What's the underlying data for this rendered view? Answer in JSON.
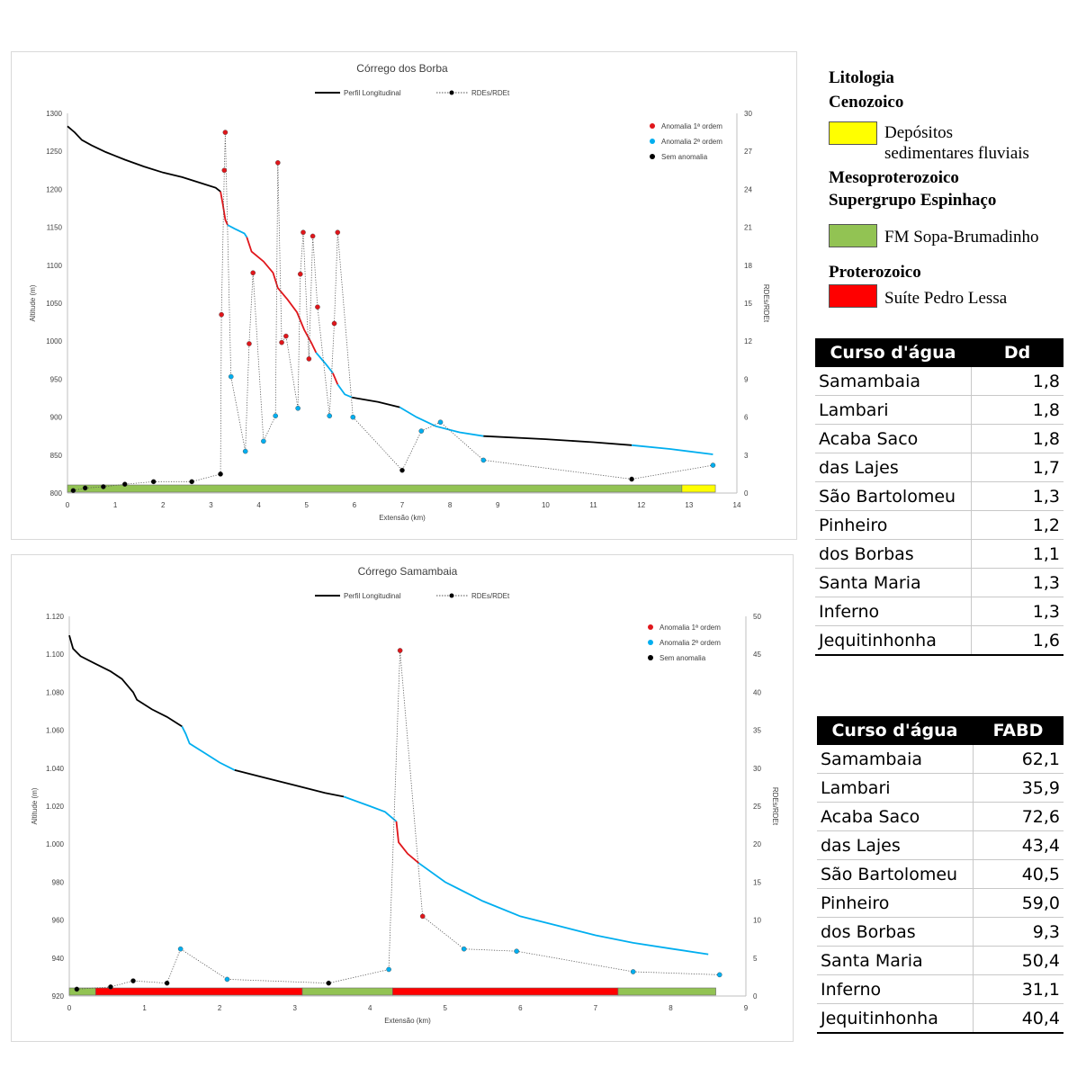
{
  "chart_data": [
    {
      "type": "line",
      "title": "Córrego dos Borba",
      "xlabel": "Extensão (km)",
      "ylabel": "Altitude (m)",
      "y2label": "RDEs/RDEt",
      "xlim": [
        0,
        14
      ],
      "ylim": [
        800,
        1300
      ],
      "y2lim": [
        0,
        30
      ],
      "xticks": [
        "0",
        "1",
        "2",
        "3",
        "4",
        "5",
        "6",
        "7",
        "8",
        "9",
        "10",
        "11",
        "12",
        "13",
        "14"
      ],
      "yticks": [
        "800",
        "850",
        "900",
        "950",
        "1000",
        "1050",
        "1100",
        "1150",
        "1200",
        "1250",
        "1300"
      ],
      "y2ticks": [
        "0",
        "3",
        "6",
        "9",
        "12",
        "15",
        "18",
        "21",
        "24",
        "27",
        "30"
      ],
      "legend_top": [
        "Perfil Longitudinal",
        "RDEs/RDEt"
      ],
      "legend_points": [
        "Anomalia 1ª ordem",
        "Anomalia 2ª ordem",
        "Sem anomalia"
      ],
      "profile_color_black": "#000000",
      "profile_color_red": "#e0161b",
      "profile_color_blue": "#00aeef",
      "profile_segments": [
        {
          "color": "#000000",
          "points": [
            [
              0,
              1283
            ],
            [
              0.15,
              1275
            ],
            [
              0.3,
              1265
            ],
            [
              0.5,
              1258
            ],
            [
              0.8,
              1249
            ],
            [
              1.2,
              1239
            ],
            [
              1.6,
              1230
            ],
            [
              2.0,
              1222
            ],
            [
              2.4,
              1216
            ],
            [
              2.8,
              1208
            ],
            [
              3.1,
              1202
            ],
            [
              3.2,
              1197
            ]
          ]
        },
        {
          "color": "#e0161b",
          "points": [
            [
              3.2,
              1197
            ],
            [
              3.25,
              1180
            ],
            [
              3.3,
              1160
            ],
            [
              3.35,
              1153
            ]
          ]
        },
        {
          "color": "#00aeef",
          "points": [
            [
              3.35,
              1153
            ],
            [
              3.5,
              1148
            ],
            [
              3.7,
              1142
            ],
            [
              3.75,
              1137
            ]
          ]
        },
        {
          "color": "#e0161b",
          "points": [
            [
              3.75,
              1137
            ],
            [
              3.85,
              1118
            ],
            [
              4.1,
              1105
            ],
            [
              4.3,
              1090
            ],
            [
              4.4,
              1070
            ],
            [
              4.6,
              1055
            ],
            [
              4.8,
              1038
            ],
            [
              4.95,
              1015
            ],
            [
              5.1,
              998
            ],
            [
              5.2,
              985
            ]
          ]
        },
        {
          "color": "#00aeef",
          "points": [
            [
              5.2,
              985
            ],
            [
              5.4,
              970
            ],
            [
              5.55,
              958
            ]
          ]
        },
        {
          "color": "#e0161b",
          "points": [
            [
              5.55,
              958
            ],
            [
              5.65,
              943
            ]
          ]
        },
        {
          "color": "#00aeef",
          "points": [
            [
              5.65,
              943
            ],
            [
              5.8,
              930
            ],
            [
              5.95,
              926
            ]
          ]
        },
        {
          "color": "#000000",
          "points": [
            [
              5.95,
              926
            ],
            [
              6.5,
              920
            ],
            [
              6.95,
              913
            ]
          ]
        },
        {
          "color": "#00aeef",
          "points": [
            [
              6.95,
              913
            ],
            [
              7.3,
              900
            ],
            [
              7.7,
              888
            ],
            [
              8.2,
              880
            ],
            [
              8.7,
              875
            ]
          ]
        },
        {
          "color": "#000000",
          "points": [
            [
              8.7,
              875
            ],
            [
              10,
              871
            ],
            [
              11,
              867
            ],
            [
              11.8,
              863
            ]
          ]
        },
        {
          "color": "#00aeef",
          "points": [
            [
              11.8,
              863
            ],
            [
              12.6,
              858
            ],
            [
              13.5,
              851
            ]
          ]
        }
      ],
      "rde_points": [
        {
          "x": 0.12,
          "y": 0.2,
          "class": "Sem anomalia"
        },
        {
          "x": 0.37,
          "y": 0.4,
          "class": "Sem anomalia"
        },
        {
          "x": 0.75,
          "y": 0.5,
          "class": "Sem anomalia"
        },
        {
          "x": 1.2,
          "y": 0.7,
          "class": "Sem anomalia"
        },
        {
          "x": 1.8,
          "y": 0.9,
          "class": "Sem anomalia"
        },
        {
          "x": 2.6,
          "y": 0.9,
          "class": "Sem anomalia"
        },
        {
          "x": 3.2,
          "y": 1.5,
          "class": "Sem anomalia"
        },
        {
          "x": 3.22,
          "y": 14.1,
          "class": "Anomalia 1ª ordem"
        },
        {
          "x": 3.28,
          "y": 25.5,
          "class": "Anomalia 1ª ordem"
        },
        {
          "x": 3.3,
          "y": 28.5,
          "class": "Anomalia 1ª ordem"
        },
        {
          "x": 3.42,
          "y": 9.2,
          "class": "Anomalia 2ª ordem"
        },
        {
          "x": 3.72,
          "y": 3.3,
          "class": "Anomalia 2ª ordem"
        },
        {
          "x": 3.8,
          "y": 11.8,
          "class": "Anomalia 1ª ordem"
        },
        {
          "x": 3.88,
          "y": 17.4,
          "class": "Anomalia 1ª ordem"
        },
        {
          "x": 4.1,
          "y": 4.1,
          "class": "Anomalia 2ª ordem"
        },
        {
          "x": 4.35,
          "y": 6.1,
          "class": "Anomalia 2ª ordem"
        },
        {
          "x": 4.4,
          "y": 26.1,
          "class": "Anomalia 1ª ordem"
        },
        {
          "x": 4.48,
          "y": 11.9,
          "class": "Anomalia 1ª ordem"
        },
        {
          "x": 4.57,
          "y": 12.4,
          "class": "Anomalia 1ª ordem"
        },
        {
          "x": 4.82,
          "y": 6.7,
          "class": "Anomalia 2ª ordem"
        },
        {
          "x": 4.87,
          "y": 17.3,
          "class": "Anomalia 1ª ordem"
        },
        {
          "x": 4.93,
          "y": 20.6,
          "class": "Anomalia 1ª ordem"
        },
        {
          "x": 5.05,
          "y": 10.6,
          "class": "Anomalia 1ª ordem"
        },
        {
          "x": 5.13,
          "y": 20.3,
          "class": "Anomalia 1ª ordem"
        },
        {
          "x": 5.23,
          "y": 14.7,
          "class": "Anomalia 1ª ordem"
        },
        {
          "x": 5.48,
          "y": 6.1,
          "class": "Anomalia 2ª ordem"
        },
        {
          "x": 5.58,
          "y": 13.4,
          "class": "Anomalia 1ª ordem"
        },
        {
          "x": 5.65,
          "y": 20.6,
          "class": "Anomalia 1ª ordem"
        },
        {
          "x": 5.97,
          "y": 6.0,
          "class": "Anomalia 2ª ordem"
        },
        {
          "x": 7.0,
          "y": 1.8,
          "class": "Sem anomalia"
        },
        {
          "x": 7.4,
          "y": 4.9,
          "class": "Anomalia 2ª ordem"
        },
        {
          "x": 7.8,
          "y": 5.6,
          "class": "Anomalia 2ª ordem"
        },
        {
          "x": 8.7,
          "y": 2.6,
          "class": "Anomalia 2ª ordem"
        },
        {
          "x": 11.8,
          "y": 1.1,
          "class": "Sem anomalia"
        },
        {
          "x": 13.5,
          "y": 2.2,
          "class": "Anomalia 2ª ordem"
        }
      ],
      "lithology_bar": [
        {
          "from": 0,
          "to": 12.85,
          "color": "#92c353"
        },
        {
          "from": 12.85,
          "to": 13.55,
          "color": "#ffff00"
        }
      ]
    },
    {
      "type": "line",
      "title": "Córrego Samambaia",
      "xlabel": "Extensão (km)",
      "ylabel": "Altitude (m)",
      "y2label": "RDEs/RDEt",
      "xlim": [
        0,
        9
      ],
      "ylim": [
        920,
        1120
      ],
      "y2lim": [
        0,
        50
      ],
      "xticks": [
        "0",
        "1",
        "2",
        "3",
        "4",
        "5",
        "6",
        "7",
        "8",
        "9"
      ],
      "yticks": [
        "920",
        "940",
        "960",
        "980",
        "1.000",
        "1.020",
        "1.040",
        "1.060",
        "1.080",
        "1.100",
        "1.120"
      ],
      "y2ticks": [
        "0",
        "5",
        "10",
        "15",
        "20",
        "25",
        "30",
        "35",
        "40",
        "45",
        "50"
      ],
      "legend_top": [
        "Perfil Longitudinal",
        "RDEs/RDEt"
      ],
      "legend_points": [
        "Anomalia 1ª ordem",
        "Anomalia 2ª ordem",
        "Sem anomalia"
      ],
      "profile_segments": [
        {
          "color": "#000000",
          "points": [
            [
              0,
              1110
            ],
            [
              0.05,
              1103
            ],
            [
              0.15,
              1099
            ],
            [
              0.35,
              1095
            ],
            [
              0.55,
              1091
            ],
            [
              0.7,
              1087
            ],
            [
              0.85,
              1080
            ],
            [
              0.9,
              1076
            ],
            [
              1.1,
              1071
            ],
            [
              1.3,
              1067
            ],
            [
              1.5,
              1062
            ]
          ]
        },
        {
          "color": "#00aeef",
          "points": [
            [
              1.5,
              1062
            ],
            [
              1.55,
              1058
            ],
            [
              1.6,
              1053
            ],
            [
              1.8,
              1048
            ],
            [
              2.0,
              1043
            ],
            [
              2.2,
              1039
            ]
          ]
        },
        {
          "color": "#000000",
          "points": [
            [
              2.2,
              1039
            ],
            [
              2.6,
              1035
            ],
            [
              3.0,
              1031
            ],
            [
              3.4,
              1027
            ],
            [
              3.65,
              1025
            ]
          ]
        },
        {
          "color": "#00aeef",
          "points": [
            [
              3.65,
              1025
            ],
            [
              4.0,
              1020
            ],
            [
              4.2,
              1017
            ],
            [
              4.35,
              1012
            ]
          ]
        },
        {
          "color": "#e0161b",
          "points": [
            [
              4.35,
              1012
            ],
            [
              4.38,
              1001
            ],
            [
              4.5,
              995
            ],
            [
              4.65,
              990
            ]
          ]
        },
        {
          "color": "#00aeef",
          "points": [
            [
              4.65,
              990
            ],
            [
              5.0,
              980
            ],
            [
              5.5,
              970
            ],
            [
              6.0,
              962
            ],
            [
              6.5,
              957
            ],
            [
              7.0,
              952
            ],
            [
              7.5,
              948
            ],
            [
              8.0,
              945
            ],
            [
              8.5,
              942
            ]
          ]
        }
      ],
      "rde_points": [
        {
          "x": 0.1,
          "y": 0.9,
          "class": "Sem anomalia"
        },
        {
          "x": 0.55,
          "y": 1.2,
          "class": "Sem anomalia"
        },
        {
          "x": 0.85,
          "y": 2.0,
          "class": "Sem anomalia"
        },
        {
          "x": 1.3,
          "y": 1.7,
          "class": "Sem anomalia"
        },
        {
          "x": 1.48,
          "y": 6.2,
          "class": "Anomalia 2ª ordem"
        },
        {
          "x": 2.1,
          "y": 2.2,
          "class": "Anomalia 2ª ordem"
        },
        {
          "x": 3.45,
          "y": 1.7,
          "class": "Sem anomalia"
        },
        {
          "x": 4.25,
          "y": 3.5,
          "class": "Anomalia 2ª ordem"
        },
        {
          "x": 4.4,
          "y": 45.5,
          "class": "Anomalia 1ª ordem"
        },
        {
          "x": 4.7,
          "y": 10.5,
          "class": "Anomalia 1ª ordem"
        },
        {
          "x": 5.25,
          "y": 6.2,
          "class": "Anomalia 2ª ordem"
        },
        {
          "x": 5.95,
          "y": 5.9,
          "class": "Anomalia 2ª ordem"
        },
        {
          "x": 7.5,
          "y": 3.2,
          "class": "Anomalia 2ª ordem"
        },
        {
          "x": 8.65,
          "y": 2.8,
          "class": "Anomalia 2ª ordem"
        }
      ],
      "lithology_bar": [
        {
          "from": 0,
          "to": 0.35,
          "color": "#92c353"
        },
        {
          "from": 0.35,
          "to": 3.1,
          "color": "#ff0000"
        },
        {
          "from": 3.1,
          "to": 4.3,
          "color": "#92c353"
        },
        {
          "from": 4.3,
          "to": 7.3,
          "color": "#ff0000"
        },
        {
          "from": 7.3,
          "to": 8.6,
          "color": "#92c353"
        }
      ]
    }
  ],
  "point_colors": {
    "Anomalia 1ª ordem": "#e0161b",
    "Anomalia 2ª ordem": "#00aeef",
    "Sem anomalia": "#000000"
  },
  "litologia": {
    "title": "Litologia",
    "cenozoico": "Cenozoico",
    "depositos_l1": "Depósitos",
    "depositos_l2": "sedimentares fluviais",
    "depositos_color": "#ffff00",
    "mesoproterozoico": "Mesoproterozoico",
    "supergrupo": "Supergrupo Espinhaço",
    "sopa": "FM Sopa-Brumadinho",
    "sopa_color": "#92c353",
    "proterozoico": "Proterozoico",
    "pedro": "Suíte Pedro Lessa",
    "pedro_color": "#ff0000"
  },
  "table_dd": {
    "h1": "Curso d'água",
    "h2": "Dd",
    "rows": [
      {
        "name": "Samambaia",
        "value": "1,8"
      },
      {
        "name": "Lambari",
        "value": "1,8"
      },
      {
        "name": "Acaba Saco",
        "value": "1,8"
      },
      {
        "name": "das Lajes",
        "value": "1,7"
      },
      {
        "name": "São Bartolomeu",
        "value": "1,3"
      },
      {
        "name": "Pinheiro",
        "value": "1,2"
      },
      {
        "name": "dos Borbas",
        "value": "1,1"
      },
      {
        "name": "Santa Maria",
        "value": "1,3"
      },
      {
        "name": "Inferno",
        "value": "1,3"
      },
      {
        "name": "Jequitinhonha",
        "value": "1,6"
      }
    ]
  },
  "table_fabd": {
    "h1": "Curso d'água",
    "h2": "FABD",
    "rows": [
      {
        "name": "Samambaia",
        "value": "62,1"
      },
      {
        "name": "Lambari",
        "value": "35,9"
      },
      {
        "name": "Acaba Saco",
        "value": "72,6"
      },
      {
        "name": "das Lajes",
        "value": "43,4"
      },
      {
        "name": "São Bartolomeu",
        "value": "40,5"
      },
      {
        "name": "Pinheiro",
        "value": "59,0"
      },
      {
        "name": "dos Borbas",
        "value": "9,3"
      },
      {
        "name": "Santa Maria",
        "value": "50,4"
      },
      {
        "name": "Inferno",
        "value": "31,1"
      },
      {
        "name": "Jequitinhonha",
        "value": "40,4"
      }
    ]
  }
}
